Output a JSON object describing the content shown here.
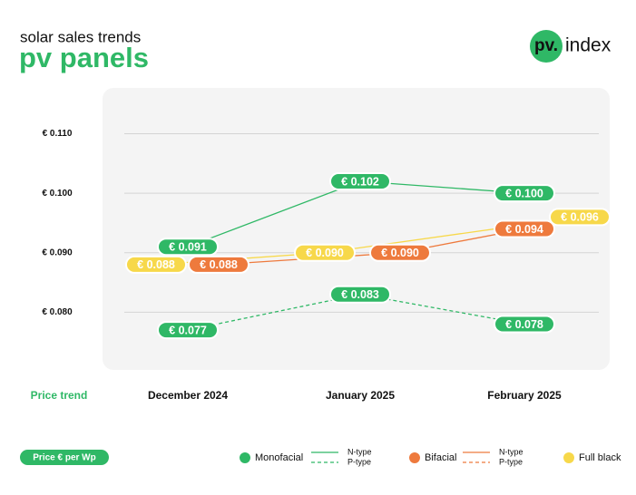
{
  "brand": {
    "mark": "pv.",
    "text": "index"
  },
  "chart_data": {
    "type": "line",
    "subtitle": "solar sales trends",
    "title": "pv panels",
    "xlabel": "Price trend",
    "ylabel": "Price € per Wp",
    "categories": [
      "December 2024",
      "January 2025",
      "February 2025"
    ],
    "ylim": [
      0.07,
      0.118
    ],
    "yticks": [
      {
        "value": 0.08,
        "label": "€ 0.080"
      },
      {
        "value": 0.09,
        "label": "€ 0.090"
      },
      {
        "value": 0.1,
        "label": "€ 0.100"
      },
      {
        "value": 0.11,
        "label": "€ 0.110"
      }
    ],
    "grid": true,
    "series": [
      {
        "name": "Monofacial",
        "color": "#2fb866",
        "variants": [
          {
            "name": "N-type",
            "line_style": "solid",
            "values": [
              0.091,
              0.102,
              0.1
            ],
            "value_labels": [
              "€ 0.091",
              "€ 0.102",
              "€ 0.100"
            ]
          },
          {
            "name": "P-type",
            "line_style": "dashed",
            "values": [
              0.077,
              0.083,
              0.078
            ],
            "value_labels": [
              "€ 0.077",
              "€ 0.083",
              "€ 0.078"
            ]
          }
        ]
      },
      {
        "name": "Bifacial",
        "color": "#ee7a3d",
        "variants": [
          {
            "name": "N-type",
            "line_style": "solid",
            "values": [
              0.088,
              0.09,
              0.094
            ],
            "value_labels": [
              "€ 0.088",
              "€ 0.090",
              "€ 0.094"
            ]
          },
          {
            "name": "P-type",
            "line_style": "dashed",
            "values": [
              null,
              null,
              null
            ]
          }
        ]
      },
      {
        "name": "Full black",
        "color": "#f7d84a",
        "variants": [
          {
            "line_style": "solid",
            "values": [
              0.088,
              0.09,
              0.096
            ],
            "value_labels": [
              "€ 0.088",
              "€ 0.090",
              "€ 0.096"
            ]
          }
        ]
      }
    ]
  }
}
